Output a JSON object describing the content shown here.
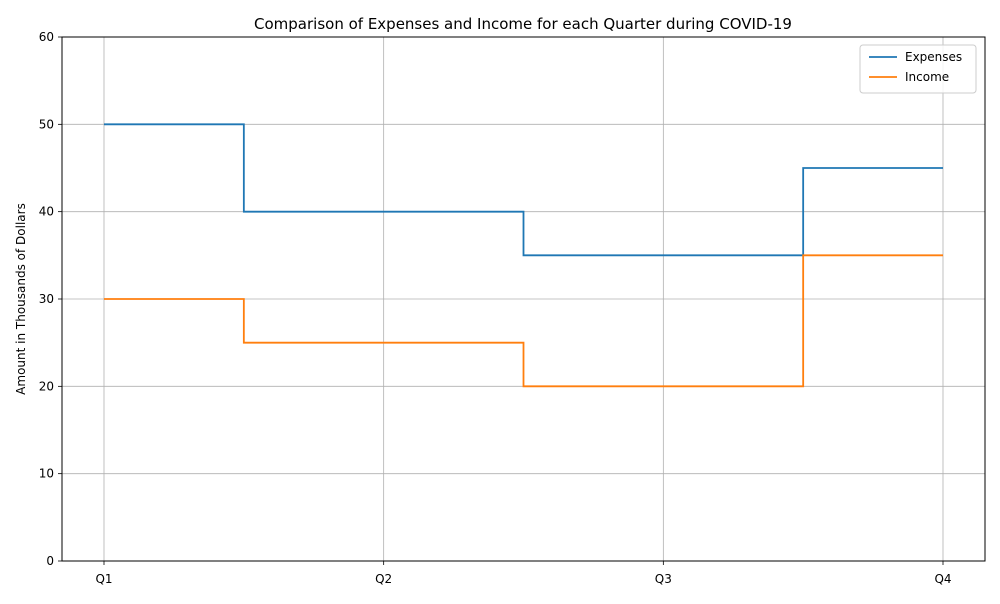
{
  "chart_data": {
    "type": "line",
    "step": "mid",
    "title": "Comparison of Expenses and Income for each Quarter during COVID-19",
    "xlabel": "",
    "ylabel": "Amount in Thousands of Dollars",
    "categories": [
      "Q1",
      "Q2",
      "Q3",
      "Q4"
    ],
    "ylim": [
      0,
      60
    ],
    "yticks": [
      0,
      10,
      20,
      30,
      40,
      50,
      60
    ],
    "grid": true,
    "legend_position": "top-right",
    "series": [
      {
        "name": "Expenses",
        "color": "#1f77b4",
        "values": [
          50,
          40,
          35,
          45
        ]
      },
      {
        "name": "Income",
        "color": "#ff7f0e",
        "values": [
          30,
          25,
          20,
          35
        ]
      }
    ]
  }
}
